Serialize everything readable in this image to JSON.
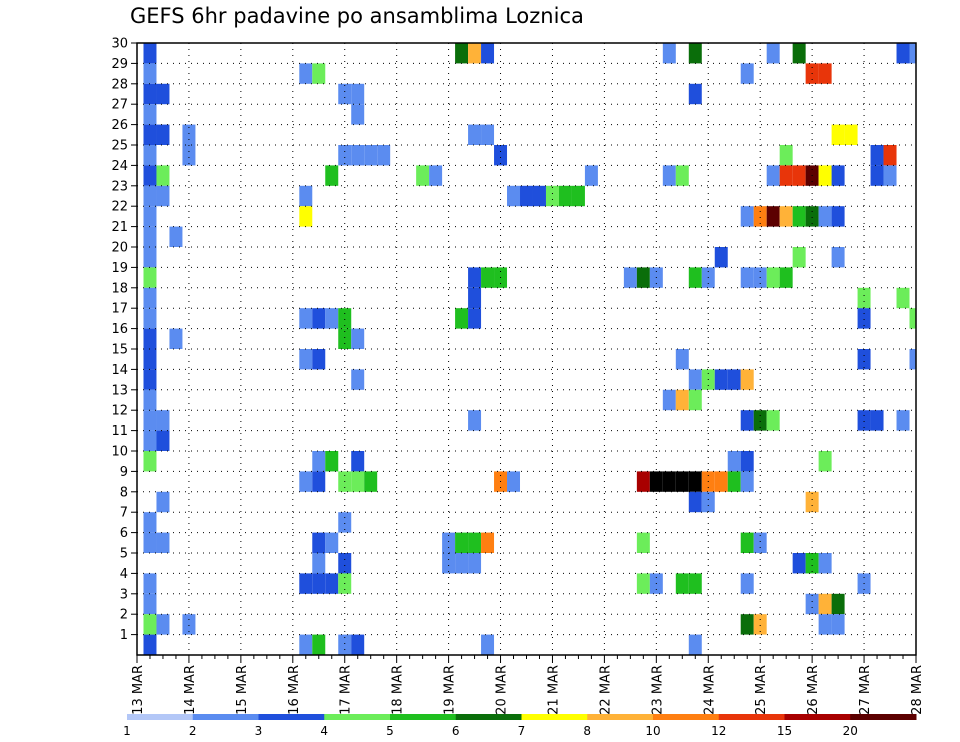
{
  "chart_data": {
    "type": "heatmap",
    "title": "GEFS 6hr padavine po ansamblima Loznica",
    "xlabel": "",
    "ylabel": "",
    "x_tick_labels": [
      "13 MAR",
      "14 MAR",
      "15 MAR",
      "16 MAR",
      "17 MAR",
      "18 MAR",
      "19 MAR",
      "20 MAR",
      "21 MAR",
      "22 MAR",
      "23 MAR",
      "24 MAR",
      "25 MAR",
      "26 MAR",
      "27 MAR",
      "28 MAR"
    ],
    "xlim": [
      0,
      60
    ],
    "x_step_hours": 6,
    "y_tick_labels": [
      "1",
      "2",
      "3",
      "4",
      "5",
      "6",
      "7",
      "8",
      "9",
      "10",
      "11",
      "12",
      "13",
      "14",
      "15",
      "16",
      "17",
      "18",
      "19",
      "20",
      "21",
      "22",
      "23",
      "24",
      "25",
      "26",
      "27",
      "28",
      "29",
      "30"
    ],
    "ylim": [
      0,
      30
    ],
    "grid": true,
    "colorbar": {
      "labels": [
        "1",
        "2",
        "3",
        "4",
        "5",
        "6",
        "7",
        "8",
        "10",
        "12",
        "15",
        "20"
      ],
      "colors": [
        "#b3c7f7",
        "#5b8cf0",
        "#1f4fdc",
        "#6ced5a",
        "#1fbf1f",
        "#0a6e0a",
        "#ffff00",
        "#ffb238",
        "#ff7f11",
        "#e8350a",
        "#a80000",
        "#5c0000"
      ]
    },
    "cells": [
      [
        1,
        29,
        2
      ],
      [
        1,
        28,
        1
      ],
      [
        1,
        27,
        2
      ],
      [
        1,
        26,
        1
      ],
      [
        1,
        25,
        2
      ],
      [
        1,
        24,
        1
      ],
      [
        1,
        23,
        2
      ],
      [
        1,
        22,
        1
      ],
      [
        1,
        21,
        1
      ],
      [
        1,
        20,
        1
      ],
      [
        1,
        19,
        1
      ],
      [
        1,
        18,
        3
      ],
      [
        1,
        17,
        1
      ],
      [
        1,
        16,
        1
      ],
      [
        1,
        15,
        2
      ],
      [
        1,
        14,
        2
      ],
      [
        1,
        13,
        2
      ],
      [
        1,
        12,
        1
      ],
      [
        1,
        11,
        1
      ],
      [
        1,
        10,
        1
      ],
      [
        1,
        9,
        3
      ],
      [
        1,
        6,
        1
      ],
      [
        1,
        5,
        1
      ],
      [
        1,
        3,
        1
      ],
      [
        1,
        2,
        1
      ],
      [
        1,
        1,
        3
      ],
      [
        1,
        0,
        2
      ],
      [
        2,
        27,
        2
      ],
      [
        2,
        25,
        2
      ],
      [
        2,
        23,
        3
      ],
      [
        2,
        22,
        1
      ],
      [
        2,
        11,
        1
      ],
      [
        2,
        10,
        2
      ],
      [
        2,
        7,
        1
      ],
      [
        2,
        5,
        1
      ],
      [
        2,
        1,
        1
      ],
      [
        3,
        20,
        1
      ],
      [
        3,
        15,
        1
      ],
      [
        4,
        25,
        1
      ],
      [
        4,
        24,
        1
      ],
      [
        4,
        1,
        1
      ],
      [
        13,
        28,
        1
      ],
      [
        13,
        22,
        1
      ],
      [
        13,
        21,
        6
      ],
      [
        13,
        16,
        1
      ],
      [
        13,
        14,
        1
      ],
      [
        13,
        8,
        1
      ],
      [
        13,
        3,
        2
      ],
      [
        13,
        0,
        1
      ],
      [
        14,
        28,
        3
      ],
      [
        14,
        16,
        2
      ],
      [
        14,
        14,
        2
      ],
      [
        14,
        9,
        1
      ],
      [
        14,
        8,
        2
      ],
      [
        14,
        5,
        2
      ],
      [
        14,
        4,
        1
      ],
      [
        14,
        3,
        2
      ],
      [
        14,
        0,
        4
      ],
      [
        15,
        23,
        4
      ],
      [
        15,
        16,
        1
      ],
      [
        15,
        9,
        4
      ],
      [
        15,
        5,
        1
      ],
      [
        15,
        3,
        2
      ],
      [
        16,
        27,
        1
      ],
      [
        16,
        24,
        1
      ],
      [
        16,
        16,
        4
      ],
      [
        16,
        15,
        4
      ],
      [
        16,
        8,
        3
      ],
      [
        16,
        6,
        1
      ],
      [
        16,
        4,
        2
      ],
      [
        16,
        3,
        3
      ],
      [
        16,
        0,
        1
      ],
      [
        17,
        27,
        1
      ],
      [
        17,
        26,
        1
      ],
      [
        17,
        24,
        1
      ],
      [
        17,
        15,
        1
      ],
      [
        17,
        13,
        1
      ],
      [
        17,
        9,
        2
      ],
      [
        17,
        8,
        3
      ],
      [
        17,
        0,
        2
      ],
      [
        18,
        24,
        1
      ],
      [
        18,
        8,
        4
      ],
      [
        19,
        24,
        1
      ],
      [
        22,
        23,
        3
      ],
      [
        23,
        23,
        1
      ],
      [
        24,
        5,
        1
      ],
      [
        24,
        4,
        1
      ],
      [
        25,
        29,
        5
      ],
      [
        25,
        16,
        4
      ],
      [
        25,
        5,
        4
      ],
      [
        25,
        4,
        1
      ],
      [
        26,
        30,
        1
      ],
      [
        26,
        29,
        7
      ],
      [
        26,
        25,
        1
      ],
      [
        26,
        18,
        2
      ],
      [
        26,
        17,
        2
      ],
      [
        26,
        16,
        2
      ],
      [
        26,
        11,
        1
      ],
      [
        26,
        5,
        4
      ],
      [
        26,
        4,
        1
      ],
      [
        27,
        29,
        2
      ],
      [
        27,
        25,
        1
      ],
      [
        27,
        18,
        4
      ],
      [
        27,
        5,
        8
      ],
      [
        27,
        0,
        1
      ],
      [
        28,
        24,
        2
      ],
      [
        28,
        18,
        4
      ],
      [
        28,
        8,
        8
      ],
      [
        29,
        22,
        1
      ],
      [
        29,
        8,
        1
      ],
      [
        30,
        22,
        2
      ],
      [
        31,
        22,
        2
      ],
      [
        32,
        22,
        3
      ],
      [
        33,
        22,
        4
      ],
      [
        34,
        22,
        4
      ],
      [
        35,
        23,
        1
      ],
      [
        38,
        18,
        1
      ],
      [
        39,
        30,
        5
      ],
      [
        39,
        18,
        5
      ],
      [
        39,
        8,
        10
      ],
      [
        39,
        5,
        3
      ],
      [
        39,
        3,
        3
      ],
      [
        40,
        30,
        3
      ],
      [
        40,
        18,
        1
      ],
      [
        40,
        8,
        12
      ],
      [
        40,
        3,
        1
      ],
      [
        41,
        29,
        1
      ],
      [
        41,
        23,
        1
      ],
      [
        41,
        12,
        1
      ],
      [
        41,
        8,
        12
      ],
      [
        42,
        23,
        3
      ],
      [
        42,
        14,
        1
      ],
      [
        42,
        12,
        7
      ],
      [
        42,
        8,
        12
      ],
      [
        42,
        3,
        4
      ],
      [
        43,
        29,
        5
      ],
      [
        43,
        27,
        2
      ],
      [
        43,
        18,
        4
      ],
      [
        43,
        13,
        1
      ],
      [
        43,
        12,
        3
      ],
      [
        43,
        8,
        12
      ],
      [
        43,
        7,
        2
      ],
      [
        43,
        3,
        4
      ],
      [
        43,
        0,
        1
      ],
      [
        44,
        18,
        1
      ],
      [
        44,
        13,
        3
      ],
      [
        44,
        8,
        8
      ],
      [
        44,
        7,
        1
      ],
      [
        45,
        30,
        8
      ],
      [
        45,
        19,
        2
      ],
      [
        45,
        13,
        2
      ],
      [
        45,
        8,
        8
      ],
      [
        46,
        30,
        5
      ],
      [
        46,
        13,
        2
      ],
      [
        46,
        9,
        1
      ],
      [
        46,
        8,
        4
      ],
      [
        47,
        30,
        2
      ],
      [
        47,
        28,
        1
      ],
      [
        47,
        21,
        1
      ],
      [
        47,
        18,
        1
      ],
      [
        47,
        13,
        7
      ],
      [
        47,
        11,
        2
      ],
      [
        47,
        9,
        2
      ],
      [
        47,
        8,
        1
      ],
      [
        47,
        5,
        4
      ],
      [
        47,
        3,
        1
      ],
      [
        47,
        1,
        5
      ],
      [
        48,
        21,
        8
      ],
      [
        48,
        18,
        1
      ],
      [
        48,
        11,
        5
      ],
      [
        48,
        5,
        1
      ],
      [
        48,
        1,
        7
      ],
      [
        49,
        29,
        1
      ],
      [
        49,
        23,
        1
      ],
      [
        49,
        21,
        11
      ],
      [
        49,
        18,
        3
      ],
      [
        49,
        11,
        3
      ],
      [
        50,
        24,
        3
      ],
      [
        50,
        23,
        9
      ],
      [
        50,
        21,
        7
      ],
      [
        50,
        18,
        4
      ],
      [
        51,
        29,
        5
      ],
      [
        51,
        23,
        9
      ],
      [
        51,
        21,
        4
      ],
      [
        51,
        19,
        3
      ],
      [
        51,
        4,
        2
      ],
      [
        52,
        28,
        9
      ],
      [
        52,
        23,
        11
      ],
      [
        52,
        21,
        5
      ],
      [
        52,
        7,
        7
      ],
      [
        52,
        4,
        4
      ],
      [
        52,
        2,
        1
      ],
      [
        53,
        28,
        9
      ],
      [
        53,
        23,
        6
      ],
      [
        53,
        21,
        1
      ],
      [
        53,
        9,
        3
      ],
      [
        53,
        4,
        1
      ],
      [
        53,
        2,
        7
      ],
      [
        53,
        1,
        1
      ],
      [
        54,
        25,
        6
      ],
      [
        54,
        23,
        2
      ],
      [
        54,
        21,
        2
      ],
      [
        54,
        19,
        1
      ],
      [
        54,
        2,
        5
      ],
      [
        54,
        1,
        1
      ],
      [
        55,
        25,
        6
      ],
      [
        56,
        17,
        3
      ],
      [
        56,
        16,
        2
      ],
      [
        56,
        14,
        2
      ],
      [
        56,
        11,
        2
      ],
      [
        56,
        3,
        1
      ],
      [
        57,
        24,
        2
      ],
      [
        57,
        23,
        2
      ],
      [
        57,
        11,
        2
      ],
      [
        58,
        24,
        9
      ],
      [
        58,
        23,
        1
      ],
      [
        59,
        29,
        2
      ],
      [
        59,
        17,
        3
      ],
      [
        59,
        11,
        1
      ],
      [
        60,
        29,
        1
      ],
      [
        60,
        16,
        3
      ],
      [
        60,
        14,
        1
      ]
    ]
  }
}
